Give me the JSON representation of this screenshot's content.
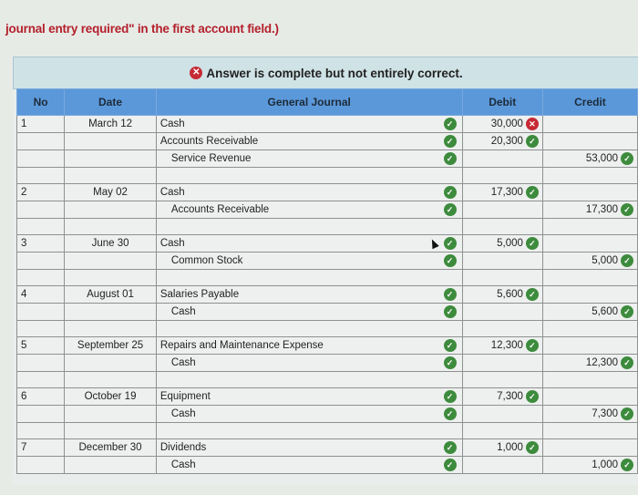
{
  "instruction_text": "journal entry required\" in the first account field.)",
  "banner": {
    "status_icon": "x-circle-icon",
    "message": "Answer is complete but not entirely correct."
  },
  "columns": {
    "no": "No",
    "date": "Date",
    "journal": "General Journal",
    "debit": "Debit",
    "credit": "Credit"
  },
  "colors": {
    "header_blue": "#5b98d9",
    "correct_green": "#3d8b3d",
    "incorrect_red": "#c62a35",
    "instruction_red": "#b3202c"
  },
  "entries": [
    {
      "no": "1",
      "date": "March 12",
      "lines": [
        {
          "account": "Cash",
          "indent": false,
          "account_status": "correct",
          "debit": "30,000",
          "debit_status": "incorrect",
          "credit": "",
          "credit_status": ""
        },
        {
          "account": "Accounts Receivable",
          "indent": false,
          "account_status": "correct",
          "debit": "20,300",
          "debit_status": "correct",
          "credit": "",
          "credit_status": ""
        },
        {
          "account": "Service Revenue",
          "indent": true,
          "account_status": "correct",
          "debit": "",
          "debit_status": "",
          "credit": "53,000",
          "credit_status": "correct"
        }
      ]
    },
    {
      "no": "2",
      "date": "May 02",
      "lines": [
        {
          "account": "Cash",
          "indent": false,
          "account_status": "correct",
          "debit": "17,300",
          "debit_status": "correct",
          "credit": "",
          "credit_status": ""
        },
        {
          "account": "Accounts Receivable",
          "indent": true,
          "account_status": "correct",
          "debit": "",
          "debit_status": "",
          "credit": "17,300",
          "credit_status": "correct"
        }
      ]
    },
    {
      "no": "3",
      "date": "June 30",
      "lines": [
        {
          "account": "Cash",
          "indent": false,
          "account_status": "correct",
          "debit": "5,000",
          "debit_status": "correct",
          "credit": "",
          "credit_status": ""
        },
        {
          "account": "Common Stock",
          "indent": true,
          "account_status": "correct",
          "debit": "",
          "debit_status": "",
          "credit": "5,000",
          "credit_status": "correct"
        }
      ]
    },
    {
      "no": "4",
      "date": "August 01",
      "lines": [
        {
          "account": "Salaries Payable",
          "indent": false,
          "account_status": "correct",
          "debit": "5,600",
          "debit_status": "correct",
          "credit": "",
          "credit_status": ""
        },
        {
          "account": "Cash",
          "indent": true,
          "account_status": "correct",
          "debit": "",
          "debit_status": "",
          "credit": "5,600",
          "credit_status": "correct"
        }
      ]
    },
    {
      "no": "5",
      "date": "September 25",
      "lines": [
        {
          "account": "Repairs and Maintenance Expense",
          "indent": false,
          "account_status": "correct",
          "debit": "12,300",
          "debit_status": "correct",
          "credit": "",
          "credit_status": ""
        },
        {
          "account": "Cash",
          "indent": true,
          "account_status": "correct",
          "debit": "",
          "debit_status": "",
          "credit": "12,300",
          "credit_status": "correct"
        }
      ]
    },
    {
      "no": "6",
      "date": "October 19",
      "lines": [
        {
          "account": "Equipment",
          "indent": false,
          "account_status": "correct",
          "debit": "7,300",
          "debit_status": "correct",
          "credit": "",
          "credit_status": ""
        },
        {
          "account": "Cash",
          "indent": true,
          "account_status": "correct",
          "debit": "",
          "debit_status": "",
          "credit": "7,300",
          "credit_status": "correct"
        }
      ]
    },
    {
      "no": "7",
      "date": "December 30",
      "lines": [
        {
          "account": "Dividends",
          "indent": false,
          "account_status": "correct",
          "debit": "1,000",
          "debit_status": "correct",
          "credit": "",
          "credit_status": ""
        },
        {
          "account": "Cash",
          "indent": true,
          "account_status": "correct",
          "debit": "",
          "debit_status": "",
          "credit": "1,000",
          "credit_status": "correct"
        }
      ]
    }
  ]
}
